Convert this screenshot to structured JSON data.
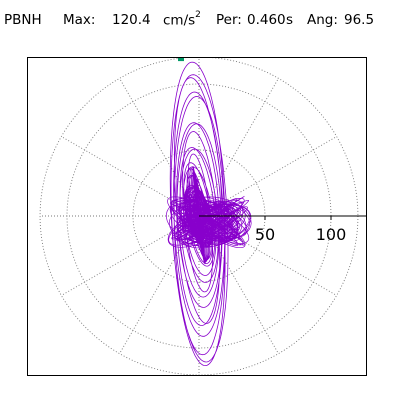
{
  "header": {
    "station": "PBNH",
    "max_label": "Max:",
    "max_value": "120.4",
    "max_unit": "cm/s",
    "max_unit_exp": "2",
    "per_label": "Per:",
    "per_value": "0.460",
    "per_unit": "s",
    "ang_label": "Ang:",
    "ang_value": "96.5"
  },
  "chart_data": {
    "type": "scatter",
    "subtype": "polar orbit plot (horizontal acceleration particle motion)",
    "title": "PBNH  Max: 120.4 cm/s2  Per: 0.460 s  Ang: 96.5",
    "radial_ticks": [
      50,
      100
    ],
    "tick_labels": [
      "50",
      "100"
    ],
    "grid": true,
    "angular_grid_step_deg": 30,
    "r_max": 120.4,
    "principal_angle_deg": 96.5,
    "peak_marker": {
      "r": 120.4,
      "angle_deg": 96.5
    },
    "colors": {
      "trace": "#8800cc",
      "marker": "#009966",
      "grid": "#777777",
      "axis": "#000000"
    }
  }
}
